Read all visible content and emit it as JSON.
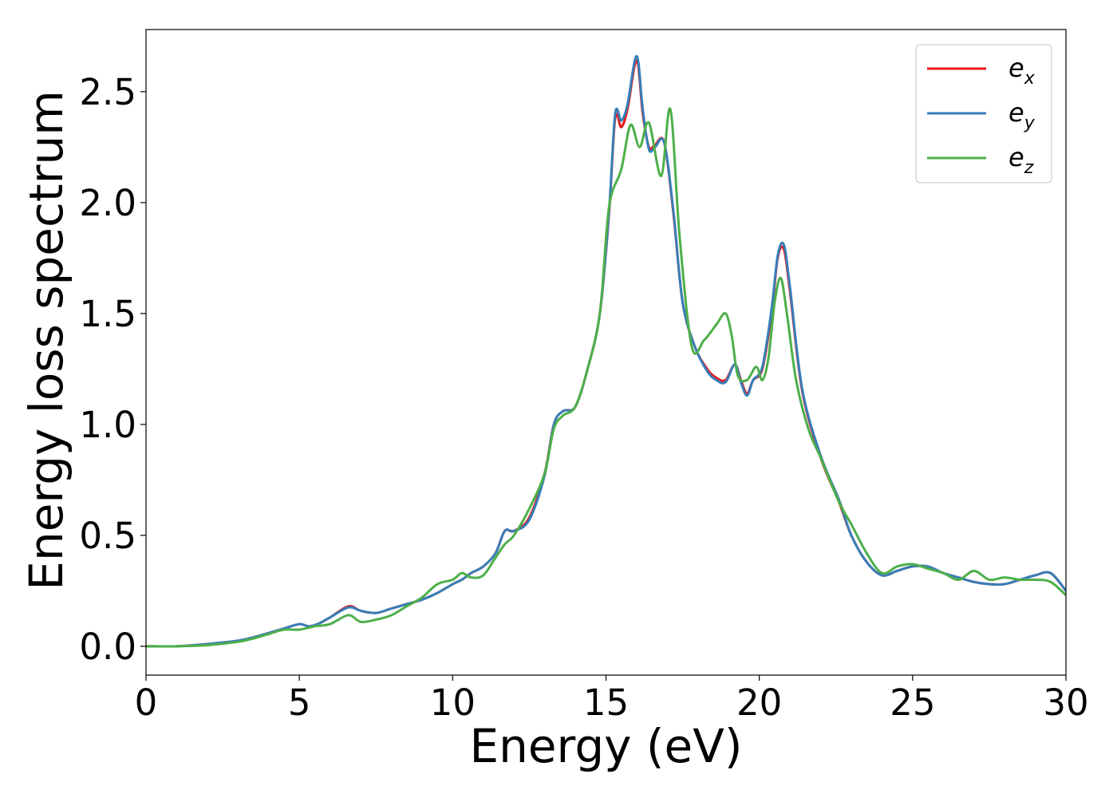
{
  "chart_data": {
    "type": "line",
    "xlabel": "Energy (eV)",
    "ylabel": "Energy loss spectrum",
    "xlim": [
      0,
      30
    ],
    "ylim": [
      -0.13,
      2.78
    ],
    "xticks": [
      0,
      5,
      10,
      15,
      20,
      25,
      30
    ],
    "xtick_labels": [
      "0",
      "5",
      "10",
      "15",
      "20",
      "25",
      "30"
    ],
    "yticks": [
      0.0,
      0.5,
      1.0,
      1.5,
      2.0,
      2.5
    ],
    "ytick_labels": [
      "0.0",
      "0.5",
      "1.0",
      "1.5",
      "2.0",
      "2.5"
    ],
    "grid": false,
    "legend_position": "top-right",
    "series": [
      {
        "name": "e_x",
        "label_main": "e",
        "label_sub": "x",
        "color": "#e41a1c",
        "x": [
          0,
          1,
          2,
          3,
          3.5,
          4,
          4.5,
          5,
          5.3,
          5.6,
          6,
          6.6,
          7,
          7.5,
          8,
          8.5,
          9,
          9.5,
          10,
          10.3,
          10.6,
          11,
          11.4,
          11.7,
          12,
          12.5,
          13,
          13.3,
          13.6,
          14,
          14.4,
          14.8,
          15.1,
          15.3,
          15.5,
          15.7,
          16,
          16.2,
          16.4,
          16.6,
          16.9,
          17.2,
          17.5,
          17.9,
          18.3,
          18.6,
          18.9,
          19.2,
          19.4,
          19.6,
          19.8,
          20.1,
          20.4,
          20.6,
          20.8,
          21,
          21.4,
          22,
          22.6,
          23,
          23.5,
          24,
          24.5,
          25,
          25.5,
          26,
          26.5,
          27,
          27.5,
          28,
          28.5,
          29,
          29.5,
          30
        ],
        "y": [
          0,
          0,
          0.01,
          0.025,
          0.04,
          0.06,
          0.08,
          0.1,
          0.09,
          0.1,
          0.13,
          0.18,
          0.16,
          0.15,
          0.17,
          0.19,
          0.21,
          0.24,
          0.28,
          0.3,
          0.33,
          0.36,
          0.42,
          0.52,
          0.52,
          0.58,
          0.78,
          1.0,
          1.06,
          1.08,
          1.25,
          1.5,
          1.95,
          2.38,
          2.34,
          2.42,
          2.64,
          2.4,
          2.25,
          2.26,
          2.27,
          1.95,
          1.55,
          1.35,
          1.25,
          1.21,
          1.2,
          1.27,
          1.2,
          1.14,
          1.2,
          1.25,
          1.5,
          1.75,
          1.79,
          1.6,
          1.15,
          0.85,
          0.65,
          0.5,
          0.38,
          0.32,
          0.34,
          0.36,
          0.36,
          0.33,
          0.31,
          0.29,
          0.28,
          0.28,
          0.3,
          0.32,
          0.33,
          0.25
        ]
      },
      {
        "name": "e_y",
        "label_main": "e",
        "label_sub": "y",
        "color": "#377eb8",
        "x": [
          0,
          1,
          2,
          3,
          3.5,
          4,
          4.5,
          5,
          5.3,
          5.6,
          6,
          6.6,
          7,
          7.5,
          8,
          8.5,
          9,
          9.5,
          10,
          10.3,
          10.6,
          11,
          11.4,
          11.7,
          12,
          12.5,
          13,
          13.3,
          13.6,
          14,
          14.4,
          14.8,
          15.1,
          15.3,
          15.5,
          15.7,
          16,
          16.2,
          16.4,
          16.6,
          16.9,
          17.2,
          17.5,
          17.9,
          18.3,
          18.6,
          18.9,
          19.2,
          19.4,
          19.6,
          19.8,
          20.1,
          20.4,
          20.6,
          20.8,
          21,
          21.4,
          22,
          22.6,
          23,
          23.5,
          24,
          24.5,
          25,
          25.5,
          26,
          26.5,
          27,
          27.5,
          28,
          28.5,
          29,
          29.5,
          30
        ],
        "y": [
          0,
          0,
          0.01,
          0.025,
          0.04,
          0.06,
          0.08,
          0.1,
          0.09,
          0.1,
          0.13,
          0.175,
          0.16,
          0.15,
          0.17,
          0.19,
          0.21,
          0.24,
          0.28,
          0.3,
          0.33,
          0.36,
          0.42,
          0.52,
          0.52,
          0.57,
          0.77,
          1.0,
          1.06,
          1.08,
          1.25,
          1.5,
          1.96,
          2.4,
          2.37,
          2.44,
          2.66,
          2.42,
          2.24,
          2.25,
          2.27,
          1.96,
          1.55,
          1.35,
          1.24,
          1.2,
          1.19,
          1.27,
          1.19,
          1.13,
          1.2,
          1.26,
          1.52,
          1.76,
          1.81,
          1.62,
          1.16,
          0.86,
          0.66,
          0.5,
          0.38,
          0.32,
          0.34,
          0.36,
          0.36,
          0.33,
          0.31,
          0.29,
          0.28,
          0.28,
          0.3,
          0.32,
          0.33,
          0.25
        ]
      },
      {
        "name": "e_z",
        "label_main": "e",
        "label_sub": "z",
        "color": "#4daf4a",
        "x": [
          0,
          1,
          2,
          3,
          3.5,
          4,
          4.5,
          5,
          5.5,
          6,
          6.6,
          7,
          7.5,
          8,
          8.5,
          9,
          9.5,
          10,
          10.3,
          10.6,
          11,
          11.4,
          11.7,
          12,
          12.5,
          13,
          13.3,
          13.6,
          14,
          14.4,
          14.8,
          15.1,
          15.5,
          15.8,
          16.1,
          16.4,
          16.8,
          17.1,
          17.4,
          17.8,
          18.2,
          18.6,
          18.9,
          19.1,
          19.3,
          19.6,
          19.9,
          20.1,
          20.3,
          20.5,
          20.7,
          20.9,
          21.2,
          21.6,
          22,
          22.6,
          23,
          23.5,
          24,
          24.5,
          25,
          25.5,
          26,
          26.5,
          27,
          27.5,
          28,
          28.5,
          29,
          29.5,
          30
        ],
        "y": [
          0,
          0,
          0.005,
          0.02,
          0.035,
          0.055,
          0.075,
          0.075,
          0.09,
          0.1,
          0.14,
          0.11,
          0.12,
          0.14,
          0.18,
          0.22,
          0.28,
          0.3,
          0.33,
          0.31,
          0.32,
          0.4,
          0.46,
          0.5,
          0.62,
          0.78,
          0.98,
          1.04,
          1.08,
          1.25,
          1.5,
          1.98,
          2.15,
          2.35,
          2.25,
          2.36,
          2.12,
          2.42,
          1.85,
          1.35,
          1.38,
          1.45,
          1.5,
          1.4,
          1.22,
          1.2,
          1.26,
          1.2,
          1.3,
          1.55,
          1.66,
          1.5,
          1.2,
          0.98,
          0.85,
          0.65,
          0.55,
          0.42,
          0.33,
          0.36,
          0.37,
          0.35,
          0.33,
          0.3,
          0.34,
          0.3,
          0.31,
          0.3,
          0.3,
          0.29,
          0.23
        ]
      }
    ]
  }
}
